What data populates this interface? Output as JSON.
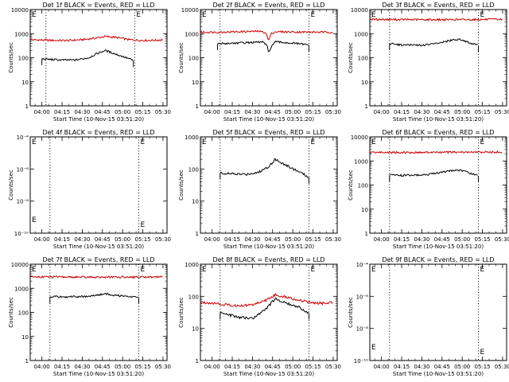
{
  "chart_data": [
    {
      "type": "line",
      "title": "Det 1f BLACK = Events, RED = LLD",
      "xlabel": "Start Time (10-Nov-15 03:51:20)",
      "ylabel": "Counts/sec",
      "x_ticks": [
        "04:00",
        "04:15",
        "04:30",
        "04:45",
        "05:00",
        "05:15",
        "05:30"
      ],
      "y_scale": "log",
      "ylim": [
        1,
        10000
      ],
      "y_ticks": [
        "1",
        "10",
        "100",
        "1000",
        "10000"
      ],
      "vlines": [
        "04:03",
        "05:09"
      ],
      "series": [
        {
          "color": "#cc0000",
          "x": [
            "03:51",
            "04:00",
            "04:10",
            "04:20",
            "04:30",
            "04:40",
            "04:47",
            "04:55",
            "05:05",
            "05:15",
            "05:25",
            "05:30"
          ],
          "y": [
            560,
            540,
            520,
            520,
            560,
            650,
            760,
            700,
            560,
            520,
            530,
            560
          ]
        },
        {
          "color": "#000000",
          "x": [
            "04:00",
            "04:05",
            "04:15",
            "04:25",
            "04:35",
            "04:40",
            "04:47",
            "04:55",
            "05:05",
            "05:08"
          ],
          "y": [
            90,
            85,
            80,
            80,
            100,
            140,
            200,
            140,
            90,
            75
          ]
        }
      ]
    },
    {
      "type": "line",
      "title": "Det 2f BLACK = Events, RED = LLD",
      "xlabel": "Start Time (10-Nov-15 03:51:20)",
      "ylabel": "Counts/sec",
      "x_ticks": [
        "04:00",
        "04:15",
        "04:30",
        "04:45",
        "05:00",
        "05:15",
        "05:30"
      ],
      "y_scale": "log",
      "ylim": [
        1,
        10000
      ],
      "y_ticks": [
        "1",
        "10",
        "100",
        "1000",
        "10000"
      ],
      "vlines": [
        "04:06",
        "05:12"
      ],
      "series": [
        {
          "color": "#cc0000",
          "x": [
            "03:51",
            "04:05",
            "04:20",
            "04:35",
            "04:40",
            "04:42",
            "04:44",
            "04:47",
            "04:55",
            "05:10",
            "05:25",
            "05:30"
          ],
          "y": [
            1150,
            1150,
            1200,
            1250,
            1100,
            500,
            1000,
            1200,
            1180,
            1160,
            1140,
            1150
          ]
        },
        {
          "color": "#000000",
          "x": [
            "04:04",
            "04:15",
            "04:30",
            "04:38",
            "04:41",
            "04:42",
            "04:44",
            "04:47",
            "04:55",
            "05:05",
            "05:12"
          ],
          "y": [
            380,
            400,
            430,
            450,
            300,
            150,
            300,
            450,
            420,
            380,
            330
          ]
        }
      ]
    },
    {
      "type": "line",
      "title": "Det 3f BLACK = Events, RED = LLD",
      "xlabel": "Start Time (10-Nov-15 03:51:20)",
      "ylabel": "Counts/sec",
      "x_ticks": [
        "04:00",
        "04:15",
        "04:30",
        "04:45",
        "05:00",
        "05:15",
        "05:30"
      ],
      "y_scale": "log",
      "ylim": [
        1,
        10000
      ],
      "y_ticks": [
        "1",
        "10",
        "100",
        "1000",
        "10000"
      ],
      "vlines": [
        "04:06",
        "05:12"
      ],
      "series": [
        {
          "color": "#cc0000",
          "x": [
            "03:51",
            "04:10",
            "04:30",
            "04:50",
            "05:10",
            "05:30"
          ],
          "y": [
            3900,
            3850,
            3800,
            3800,
            3850,
            3900
          ]
        },
        {
          "color": "#000000",
          "x": [
            "04:06",
            "04:15",
            "04:30",
            "04:40",
            "04:50",
            "04:58",
            "05:05",
            "05:12"
          ],
          "y": [
            380,
            340,
            330,
            380,
            500,
            600,
            420,
            320
          ]
        }
      ]
    },
    {
      "type": "line",
      "title": "Det 4f BLACK = Events, RED = LLD",
      "xlabel": "Start Time (10-Nov-15 03:51:20)",
      "ylabel": "Counts/sec",
      "x_ticks": [
        "04:00",
        "04:15",
        "04:30",
        "04:45",
        "05:00",
        "05:15",
        "05:30"
      ],
      "y_scale": "log",
      "ylim": [
        1e-10,
        0.0001
      ],
      "y_ticks": [
        "10⁻¹⁰",
        "10⁻⁸",
        "10⁻⁶",
        "10⁻⁴"
      ],
      "vlines": [
        "04:06",
        "05:12"
      ],
      "series": []
    },
    {
      "type": "line",
      "title": "Det 5f BLACK = Events, RED = LLD",
      "xlabel": "Start Time (10-Nov-15 03:51:20)",
      "ylabel": "Counts/sec",
      "x_ticks": [
        "04:00",
        "04:15",
        "04:30",
        "04:45",
        "05:00",
        "05:15",
        "05:30"
      ],
      "y_scale": "log",
      "ylim": [
        1,
        1000
      ],
      "y_ticks": [
        "1",
        "10",
        "100",
        "1000"
      ],
      "vlines": [
        "04:06",
        "05:12"
      ],
      "series": [
        {
          "color": "#000000",
          "x": [
            "04:06",
            "04:15",
            "04:25",
            "04:35",
            "04:42",
            "04:47",
            "04:55",
            "05:05",
            "05:12"
          ],
          "y": [
            75,
            70,
            68,
            80,
            120,
            200,
            130,
            80,
            55
          ]
        }
      ]
    },
    {
      "type": "line",
      "title": "Det 6f BLACK = Events, RED = LLD",
      "xlabel": "Start Time (10-Nov-15 03:51:20)",
      "ylabel": "Counts/sec",
      "x_ticks": [
        "04:00",
        "04:15",
        "04:30",
        "04:45",
        "05:00",
        "05:15",
        "05:30"
      ],
      "y_scale": "log",
      "ylim": [
        1,
        10000
      ],
      "y_ticks": [
        "1",
        "10",
        "100",
        "1000",
        "10000"
      ],
      "vlines": [
        "04:06",
        "05:12"
      ],
      "series": [
        {
          "color": "#cc0000",
          "x": [
            "03:51",
            "04:10",
            "04:30",
            "04:50",
            "05:10",
            "05:30"
          ],
          "y": [
            2300,
            2250,
            2250,
            2300,
            2300,
            2350
          ]
        },
        {
          "color": "#000000",
          "x": [
            "04:06",
            "04:15",
            "04:30",
            "04:40",
            "04:50",
            "04:58",
            "05:05",
            "05:12"
          ],
          "y": [
            260,
            250,
            260,
            300,
            380,
            420,
            320,
            240
          ]
        }
      ]
    },
    {
      "type": "line",
      "title": "Det 7f BLACK = Events, RED = LLD",
      "xlabel": "Start Time (10-Nov-15 03:51:20)",
      "ylabel": "Counts/sec",
      "x_ticks": [
        "04:00",
        "04:15",
        "04:30",
        "04:45",
        "05:00",
        "05:15",
        "05:30"
      ],
      "y_scale": "log",
      "ylim": [
        1,
        10000
      ],
      "y_ticks": [
        "1",
        "10",
        "100",
        "1000",
        "10000"
      ],
      "vlines": [
        "04:06",
        "05:12"
      ],
      "series": [
        {
          "color": "#cc0000",
          "x": [
            "03:51",
            "04:10",
            "04:30",
            "04:50",
            "05:10",
            "05:30"
          ],
          "y": [
            3000,
            2950,
            2900,
            2900,
            2950,
            3000
          ]
        },
        {
          "color": "#000000",
          "x": [
            "04:06",
            "04:15",
            "04:30",
            "04:40",
            "04:47",
            "04:55",
            "05:05",
            "05:12"
          ],
          "y": [
            450,
            440,
            450,
            500,
            600,
            500,
            460,
            430
          ]
        }
      ]
    },
    {
      "type": "line",
      "title": "Det 8f BLACK = Events, RED = LLD",
      "xlabel": "Start Time (10-Nov-15 03:51:20)",
      "ylabel": "Counts/sec",
      "x_ticks": [
        "04:00",
        "04:15",
        "04:30",
        "04:45",
        "05:00",
        "05:15",
        "05:30"
      ],
      "y_scale": "log",
      "ylim": [
        1,
        1000
      ],
      "y_ticks": [
        "1",
        "10",
        "100",
        "1000"
      ],
      "vlines": [
        "04:06",
        "05:12"
      ],
      "series": [
        {
          "color": "#cc0000",
          "x": [
            "03:51",
            "04:00",
            "04:10",
            "04:20",
            "04:30",
            "04:40",
            "04:47",
            "04:55",
            "05:05",
            "05:15",
            "05:25",
            "05:30"
          ],
          "y": [
            65,
            62,
            55,
            50,
            55,
            75,
            110,
            95,
            75,
            62,
            60,
            68
          ]
        },
        {
          "color": "#000000",
          "x": [
            "04:06",
            "04:10",
            "04:20",
            "04:30",
            "04:40",
            "04:47",
            "04:55",
            "05:05",
            "05:12"
          ],
          "y": [
            30,
            28,
            22,
            20,
            40,
            85,
            60,
            45,
            30
          ]
        }
      ]
    },
    {
      "type": "line",
      "title": "Det 9f BLACK = Events, RED = LLD",
      "xlabel": "Start Time (10-Nov-15 03:51:20)",
      "ylabel": "Counts/sec",
      "x_ticks": [
        "04:00",
        "04:15",
        "04:30",
        "04:45",
        "05:00",
        "05:15",
        "05:30"
      ],
      "y_scale": "log",
      "ylim": [
        1e-10,
        0.0001
      ],
      "y_ticks": [
        "10⁻¹⁰",
        "10⁻⁸",
        "10⁻⁶",
        "10⁻⁴"
      ],
      "vlines": [
        "04:06",
        "05:12"
      ],
      "series": []
    }
  ]
}
